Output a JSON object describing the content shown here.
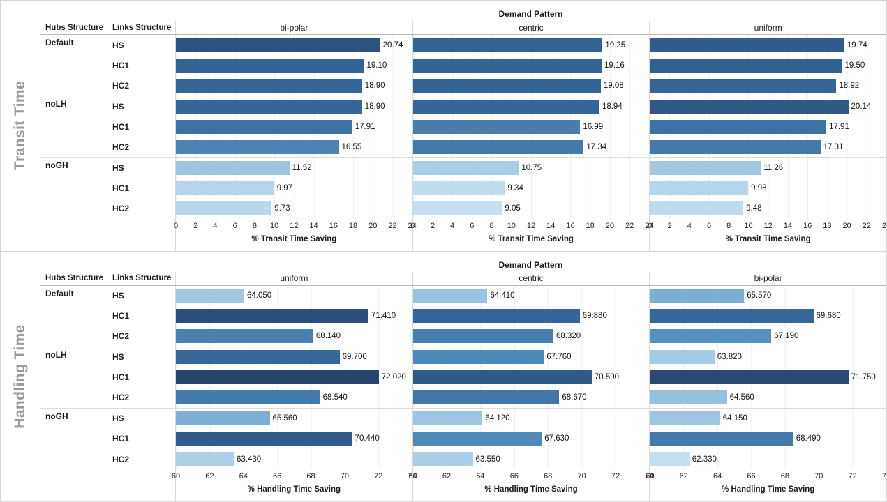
{
  "colors": {
    "ramp": [
      "#c6dff0",
      "#8fbedd",
      "#5591bf",
      "#35689a",
      "#26456e"
    ],
    "panel_title_gray": "#999999",
    "separator_gray": "#d6d6d6"
  },
  "chart_data": [
    {
      "type": "bar",
      "panel_title": "Transit Time",
      "facet_header": "Demand Pattern",
      "row_header_labels": [
        "Hubs Structure",
        "Links Structure"
      ],
      "columns": [
        "bi-polar",
        "centric",
        "uniform"
      ],
      "xlabel": "% Transit Time Saving",
      "xlim": [
        0,
        24
      ],
      "xticks": [
        0,
        2,
        4,
        6,
        8,
        10,
        12,
        14,
        16,
        18,
        20,
        22,
        24
      ],
      "color_domain": [
        9.0,
        22.0
      ],
      "legend_position": "none",
      "grid": true,
      "groups": [
        {
          "hub": "Default",
          "rows": [
            {
              "link": "HS",
              "values": [
                20.74,
                19.25,
                19.74
              ],
              "labels": [
                "20.74",
                "19.25",
                "19.74"
              ]
            },
            {
              "link": "HC1",
              "values": [
                19.1,
                19.16,
                19.5
              ],
              "labels": [
                "19.10",
                "19.16",
                "19.50"
              ]
            },
            {
              "link": "HC2",
              "values": [
                18.9,
                19.08,
                18.92
              ],
              "labels": [
                "18.90",
                "19.08",
                "18.92"
              ]
            }
          ]
        },
        {
          "hub": "noLH",
          "rows": [
            {
              "link": "HS",
              "values": [
                18.9,
                18.94,
                20.14
              ],
              "labels": [
                "18.90",
                "18.94",
                "20.14"
              ]
            },
            {
              "link": "HC1",
              "values": [
                17.91,
                16.99,
                17.91
              ],
              "labels": [
                "17.91",
                "16.99",
                "17.91"
              ]
            },
            {
              "link": "HC2",
              "values": [
                16.55,
                17.34,
                17.31
              ],
              "labels": [
                "16.55",
                "17.34",
                "17.31"
              ]
            }
          ]
        },
        {
          "hub": "noGH",
          "rows": [
            {
              "link": "HS",
              "values": [
                11.52,
                10.75,
                11.26
              ],
              "labels": [
                "11.52",
                "10.75",
                "11.26"
              ]
            },
            {
              "link": "HC1",
              "values": [
                9.97,
                9.34,
                9.98
              ],
              "labels": [
                "9.97",
                "9.34",
                "9.98"
              ]
            },
            {
              "link": "HC2",
              "values": [
                9.73,
                9.05,
                9.48
              ],
              "labels": [
                "9.73",
                "9.05",
                "9.48"
              ]
            }
          ]
        }
      ]
    },
    {
      "type": "bar",
      "panel_title": "Handling Time",
      "facet_header": "Demand Pattern",
      "row_header_labels": [
        "Hubs Structure",
        "Links Structure"
      ],
      "columns": [
        "uniform",
        "centric",
        "bi-polar"
      ],
      "xlabel": "% Handling Time Saving",
      "xlim": [
        60,
        74
      ],
      "xticks": [
        60,
        62,
        64,
        66,
        68,
        70,
        72,
        74
      ],
      "color_domain": [
        62.3,
        72.1
      ],
      "legend_position": "none",
      "grid": true,
      "groups": [
        {
          "hub": "Default",
          "rows": [
            {
              "link": "HS",
              "values": [
                64.05,
                64.41,
                65.57
              ],
              "labels": [
                "64.050",
                "64.410",
                "65.570"
              ]
            },
            {
              "link": "HC1",
              "values": [
                71.41,
                69.88,
                69.68
              ],
              "labels": [
                "71.410",
                "69.880",
                "69.680"
              ]
            },
            {
              "link": "HC2",
              "values": [
                68.14,
                68.32,
                67.19
              ],
              "labels": [
                "68.140",
                "68.320",
                "67.190"
              ]
            }
          ]
        },
        {
          "hub": "noLH",
          "rows": [
            {
              "link": "HS",
              "values": [
                69.7,
                67.76,
                63.82
              ],
              "labels": [
                "69.700",
                "67.760",
                "63.820"
              ]
            },
            {
              "link": "HC1",
              "values": [
                72.02,
                70.59,
                71.75
              ],
              "labels": [
                "72.020",
                "70.590",
                "71.750"
              ]
            },
            {
              "link": "HC2",
              "values": [
                68.54,
                68.67,
                64.56
              ],
              "labels": [
                "68.540",
                "68.670",
                "64.560"
              ]
            }
          ]
        },
        {
          "hub": "noGH",
          "rows": [
            {
              "link": "HS",
              "values": [
                65.56,
                64.12,
                64.15
              ],
              "labels": [
                "65.560",
                "64.120",
                "64.150"
              ]
            },
            {
              "link": "HC1",
              "values": [
                70.44,
                67.63,
                68.49
              ],
              "labels": [
                "70.440",
                "67.630",
                "68.490"
              ]
            },
            {
              "link": "HC2",
              "values": [
                63.43,
                63.55,
                62.33
              ],
              "labels": [
                "63.430",
                "63.550",
                "62.330"
              ]
            }
          ]
        }
      ]
    }
  ]
}
